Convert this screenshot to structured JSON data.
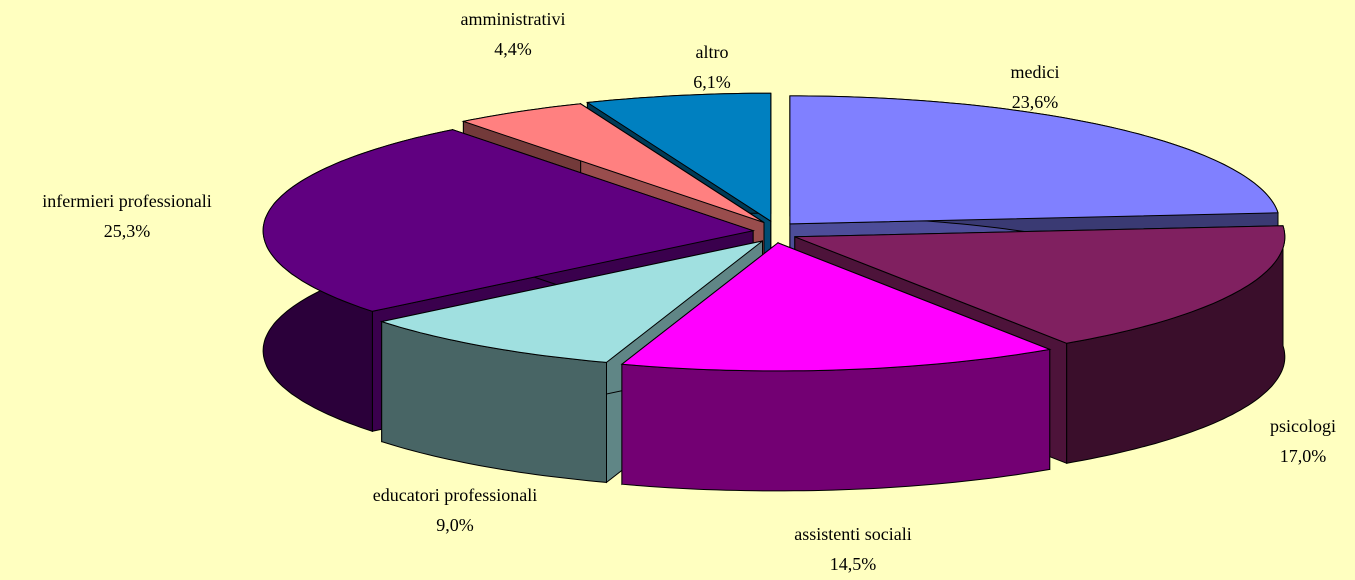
{
  "chart_data": {
    "type": "pie3d",
    "categories": [
      "medici",
      "psicologi",
      "assistenti sociali",
      "educatori professionali",
      "infermieri professionali",
      "amministrativi",
      "altro"
    ],
    "values": [
      23.6,
      17.0,
      14.5,
      9.0,
      25.3,
      4.4,
      6.1
    ],
    "value_labels": [
      "23,6%",
      "17,0%",
      "14,5%",
      "9,0%",
      "25,3%",
      "4,4%",
      "6,1%"
    ],
    "colors": [
      "#8080ff",
      "#802060",
      "#ff00ff",
      "#a0e0e0",
      "#600080",
      "#ff8080",
      "#0080c0"
    ]
  }
}
